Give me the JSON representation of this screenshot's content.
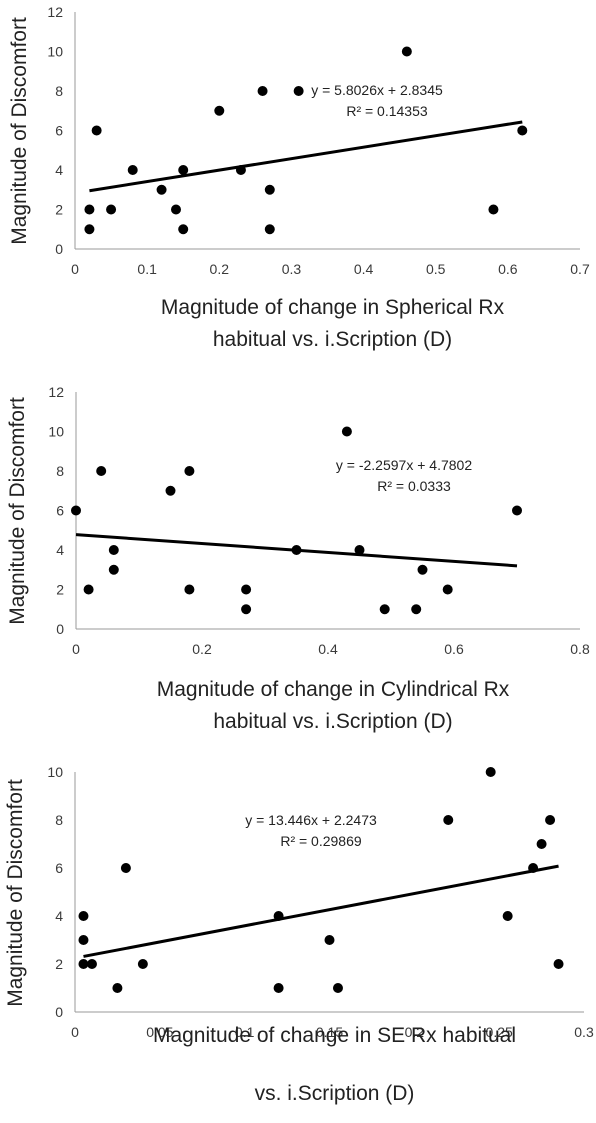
{
  "chart_data": [
    {
      "type": "scatter",
      "ylabel": "Magnitude of Discomfort",
      "xlabel_lines": [
        "Magnitude of change in Spherical Rx",
        "habitual vs. i.Scription (D)"
      ],
      "xlim": [
        0,
        0.7
      ],
      "ylim": [
        0,
        12
      ],
      "xticks": [
        "0",
        "0.1",
        "0.2",
        "0.3",
        "0.4",
        "0.5",
        "0.6",
        "0.7"
      ],
      "yticks": [
        "0",
        "2",
        "4",
        "6",
        "8",
        "10",
        "12"
      ],
      "x": [
        0.02,
        0.02,
        0.03,
        0.05,
        0.08,
        0.12,
        0.14,
        0.15,
        0.15,
        0.2,
        0.23,
        0.26,
        0.27,
        0.27,
        0.31,
        0.46,
        0.58,
        0.62
      ],
      "y": [
        2,
        1,
        6,
        2,
        4,
        3,
        2,
        4,
        1,
        7,
        4,
        8,
        3,
        1,
        8,
        10,
        2,
        6
      ],
      "trendline": {
        "slope": 5.8026,
        "intercept": 2.8345,
        "x_range": [
          0.02,
          0.62
        ]
      },
      "annotations": [
        "y = 5.8026x + 2.8345",
        "R² = 0.14353"
      ]
    },
    {
      "type": "scatter",
      "ylabel": "Magnitude of Discomfort",
      "xlabel_lines": [
        "Magnitude of change in Cylindrical Rx",
        "habitual vs. i.Scription (D)"
      ],
      "xlim": [
        0,
        0.8
      ],
      "ylim": [
        0,
        12
      ],
      "xticks": [
        "0",
        "0.2",
        "0.4",
        "0.6",
        "0.8"
      ],
      "yticks": [
        "0",
        "2",
        "4",
        "6",
        "8",
        "10",
        "12"
      ],
      "x": [
        0,
        0.02,
        0.04,
        0.06,
        0.06,
        0.15,
        0.18,
        0.18,
        0.27,
        0.27,
        0.35,
        0.43,
        0.45,
        0.49,
        0.54,
        0.55,
        0.59,
        0.7
      ],
      "y": [
        6,
        2,
        8,
        4,
        3,
        7,
        8,
        2,
        2,
        1,
        4,
        10,
        4,
        1,
        1,
        3,
        2,
        6
      ],
      "trendline": {
        "slope": -2.2597,
        "intercept": 4.7802,
        "x_range": [
          0,
          0.7
        ]
      },
      "annotations": [
        "y = -2.2597x + 4.7802",
        "R² = 0.0333"
      ]
    },
    {
      "type": "scatter",
      "ylabel": "Magnitude of Discomfort",
      "xlabel_lines": [
        "Magnitude of change in SE Rx habitual",
        "vs. i.Scription (D)"
      ],
      "xlim": [
        0,
        0.3
      ],
      "ylim": [
        0,
        10
      ],
      "xticks": [
        "0",
        "0.05",
        "0.1",
        "0.15",
        "0.2",
        "0.25",
        "0.3"
      ],
      "yticks": [
        "0",
        "2",
        "4",
        "6",
        "8",
        "10"
      ],
      "x": [
        0.005,
        0.005,
        0.005,
        0.01,
        0.025,
        0.03,
        0.04,
        0.12,
        0.12,
        0.15,
        0.155,
        0.22,
        0.245,
        0.255,
        0.27,
        0.275,
        0.28,
        0.285
      ],
      "y": [
        4,
        3,
        2,
        2,
        1,
        6,
        2,
        4,
        1,
        3,
        1,
        8,
        10,
        4,
        6,
        7,
        8,
        2
      ],
      "trendline": {
        "slope": 13.446,
        "intercept": 2.2473,
        "x_range": [
          0.005,
          0.285
        ]
      },
      "annotations": [
        "y = 13.446x + 2.2473",
        "R² = 0.29869"
      ]
    }
  ]
}
